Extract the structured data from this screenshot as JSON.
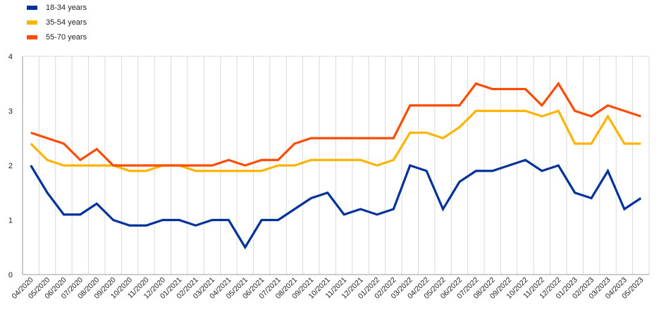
{
  "chart_data": {
    "type": "line",
    "title": "",
    "xlabel": "",
    "ylabel": "",
    "ylim": [
      0,
      4
    ],
    "yticks": [
      0,
      1,
      2,
      3,
      4
    ],
    "grid": "vertical",
    "legend_position": "top-left",
    "categories": [
      "04/2020",
      "05/2020",
      "06/2020",
      "07/2020",
      "08/2020",
      "09/2020",
      "10/2020",
      "11/2020",
      "12/2020",
      "01/2021",
      "02/2021",
      "03/2021",
      "04/2021",
      "05/2021",
      "06/2021",
      "07/2021",
      "08/2021",
      "09/2021",
      "10/2021",
      "11/2021",
      "12/2021",
      "01/2022",
      "02/2022",
      "03/2022",
      "04/2022",
      "05/2022",
      "06/2022",
      "07/2022",
      "08/2022",
      "09/2022",
      "10/2022",
      "11/2022",
      "12/2022",
      "01/2023",
      "02/2023",
      "03/2023",
      "04/2023",
      "05/2023"
    ],
    "series": [
      {
        "name": "18-34 years",
        "color": "#003299",
        "values": [
          2.0,
          1.5,
          1.1,
          1.1,
          1.3,
          1.0,
          0.9,
          0.9,
          1.0,
          1.0,
          0.9,
          1.0,
          1.0,
          0.5,
          1.0,
          1.0,
          1.2,
          1.4,
          1.5,
          1.1,
          1.2,
          1.1,
          1.2,
          2.0,
          1.9,
          1.2,
          1.7,
          1.9,
          1.9,
          2.0,
          2.1,
          1.9,
          2.0,
          1.5,
          1.4,
          1.9,
          1.2,
          1.4
        ]
      },
      {
        "name": "35-54 years",
        "color": "#FFB400",
        "values": [
          2.4,
          2.1,
          2.0,
          2.0,
          2.0,
          2.0,
          1.9,
          1.9,
          2.0,
          2.0,
          1.9,
          1.9,
          1.9,
          1.9,
          1.9,
          2.0,
          2.0,
          2.1,
          2.1,
          2.1,
          2.1,
          2.0,
          2.1,
          2.6,
          2.6,
          2.5,
          2.7,
          3.0,
          3.0,
          3.0,
          3.0,
          2.9,
          3.0,
          2.4,
          2.4,
          2.9,
          2.4,
          2.4
        ]
      },
      {
        "name": "55-70 years",
        "color": "#FF4B00",
        "values": [
          2.6,
          2.5,
          2.4,
          2.1,
          2.3,
          2.0,
          2.0,
          2.0,
          2.0,
          2.0,
          2.0,
          2.0,
          2.1,
          2.0,
          2.1,
          2.1,
          2.4,
          2.5,
          2.5,
          2.5,
          2.5,
          2.5,
          2.5,
          3.1,
          3.1,
          3.1,
          3.1,
          3.5,
          3.4,
          3.4,
          3.4,
          3.1,
          3.5,
          3.0,
          2.9,
          3.1,
          3.0,
          2.9
        ]
      }
    ]
  }
}
